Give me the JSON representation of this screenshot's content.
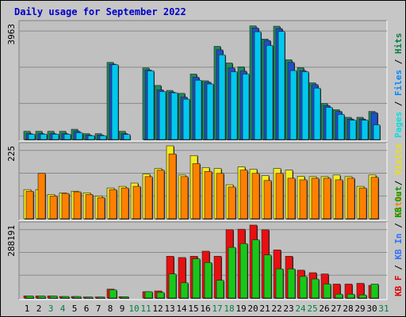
{
  "chart_data": {
    "type": "bar",
    "title": "Daily usage for September 2022",
    "categories": [
      "1",
      "2",
      "3",
      "4",
      "5",
      "6",
      "7",
      "8",
      "9",
      "10",
      "11",
      "12",
      "13",
      "14",
      "15",
      "16",
      "17",
      "18",
      "19",
      "20",
      "21",
      "22",
      "23",
      "24",
      "25",
      "26",
      "27",
      "28",
      "29",
      "30",
      "31"
    ],
    "weekend_days": [
      "3",
      "4",
      "10",
      "11",
      "17",
      "18",
      "24",
      "25",
      "31"
    ],
    "panels": [
      {
        "name": "hits-files-pages",
        "ymax_label": "3963",
        "ymax": 3963,
        "axis_legend": [
          {
            "text": "Pages",
            "color": "#00e0e0"
          },
          {
            "text": " / ",
            "color": "#000000"
          },
          {
            "text": "Files",
            "color": "#0088ff"
          },
          {
            "text": " / ",
            "color": "#000000"
          },
          {
            "text": "Hits",
            "color": "#008040"
          }
        ],
        "series": [
          {
            "key": "hits",
            "color": "#1e8a5c",
            "values": [
              280,
              280,
              280,
              280,
              350,
              200,
              200,
              2640,
              280,
              0,
              2450,
              1850,
              1680,
              1580,
              2240,
              2010,
              3190,
              2620,
              2490,
              3890,
              3440,
              3880,
              2730,
              2460,
              1940,
              1230,
              1020,
              760,
              760,
              960,
              0
            ]
          },
          {
            "key": "files",
            "color": "#1e4fc8",
            "values": [
              200,
              200,
              200,
              200,
              280,
              150,
              150,
              2580,
              200,
              0,
              2380,
              1700,
              1620,
              1450,
              2130,
              1960,
              3070,
              2450,
              2340,
              3820,
              3390,
              3800,
              2640,
              2360,
              1880,
              1160,
              960,
              700,
              700,
              920,
              0
            ]
          },
          {
            "key": "pages",
            "color": "#00c8ee",
            "values": [
              180,
              180,
              180,
              180,
              230,
              130,
              130,
              2560,
              170,
              0,
              2350,
              1640,
              1600,
              1380,
              2030,
              1900,
              2900,
              2320,
              2240,
              3690,
              3220,
              3700,
              2360,
              2320,
              1760,
              1100,
              860,
              660,
              660,
              500,
              0
            ]
          }
        ]
      },
      {
        "name": "visits-sites",
        "ymax_label": "225",
        "ymax": 225,
        "axis_legend": [
          {
            "text": "Sites",
            "color": "#ff8000"
          },
          {
            "text": " / ",
            "color": "#000000"
          },
          {
            "text": "Visits",
            "color": "#f0e000"
          }
        ],
        "series": [
          {
            "key": "visits",
            "color": "#f4ec1a",
            "values": [
              90,
              90,
              75,
              80,
              85,
              80,
              70,
              95,
              100,
              110,
              138,
              155,
              225,
              135,
              195,
              158,
              155,
              105,
              160,
              153,
              133,
              155,
              150,
              131,
              130,
              130,
              135,
              130,
              100,
              135,
              0
            ]
          },
          {
            "key": "sites",
            "color": "#ff8000",
            "values": [
              85,
              140,
              70,
              78,
              83,
              75,
              65,
              90,
              95,
              100,
              130,
              150,
              200,
              130,
              170,
              146,
              140,
              98,
              150,
              140,
              118,
              140,
              125,
              120,
              125,
              125,
              120,
              125,
              95,
              128,
              0
            ]
          }
        ]
      },
      {
        "name": "kb-in-out",
        "ymax_label": "288191",
        "ymax": 288191,
        "axis_legend": [
          {
            "text": "KB F",
            "color": "#e00000"
          },
          {
            "text": " / ",
            "color": "#000000"
          },
          {
            "text": "KB In",
            "color": "#3070ff"
          },
          {
            "text": " / ",
            "color": "#000000"
          },
          {
            "text": "KB Out",
            "color": "#00a000"
          }
        ],
        "series": [
          {
            "key": "kbf",
            "color": "#e81010",
            "values": [
              8000,
              8000,
              8000,
              6000,
              6000,
              4000,
              4000,
              35000,
              5000,
              0,
              25000,
              28000,
              165000,
              160000,
              165000,
              185000,
              165000,
              270000,
              272000,
              288191,
              270000,
              190000,
              165000,
              110000,
              100000,
              95000,
              55000,
              55000,
              58000,
              50000,
              0
            ]
          },
          {
            "key": "kbout",
            "color": "#18c818",
            "values": [
              8000,
              8000,
              8000,
              6000,
              6000,
              4000,
              4000,
              32000,
              5000,
              0,
              25000,
              22000,
              95000,
              60000,
              155000,
              140000,
              70000,
              200000,
              215000,
              230000,
              170000,
              115000,
              115000,
              85000,
              75000,
              55000,
              15000,
              15000,
              12000,
              55000,
              0
            ]
          }
        ]
      }
    ],
    "grid": true,
    "legend": "right-vertical"
  }
}
